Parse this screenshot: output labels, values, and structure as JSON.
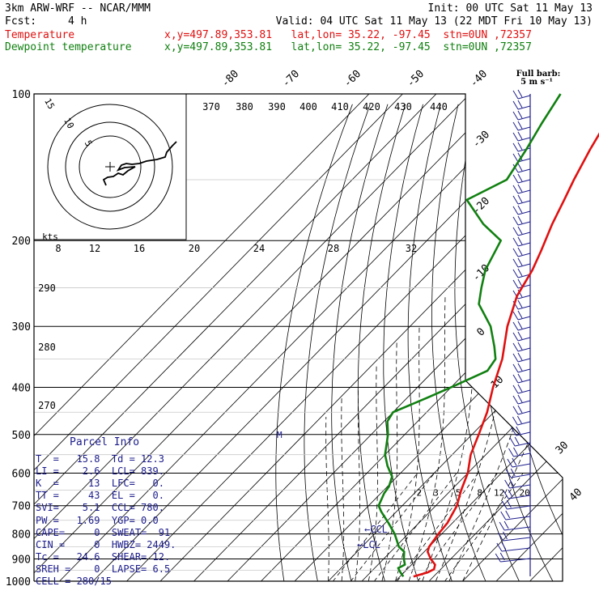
{
  "header": {
    "model": "3km ARW-WRF -- NCAR/MMM",
    "init": "Init: 00 UTC Sat 11 May 13",
    "fcst_label": "Fcst:",
    "fcst_value": "4 h",
    "valid": "Valid: 04 UTC Sat 11 May 13 (22 MDT Fri 10 May 13)",
    "temp_label": "Temperature",
    "dew_label": "Dewpoint temperature",
    "temp_info": "x,y=497.89,353.81   lat,lon= 35.22, -97.45  stn=0UN ,72357",
    "dew_info": "x,y=497.89,353.81   lat,lon= 35.22, -97.45  stn=0UN ,72357"
  },
  "colors": {
    "temperature": "#e01010",
    "dewpoint": "#108010",
    "wind": "#1c1c8c",
    "grid": "#000000"
  },
  "parcel_info": {
    "title": "Parcel Info",
    "rows": [
      "T  =   15.8  Td = 12.3",
      "LI =    2.6  LCL= 839.",
      "K  =     13  LFC=   0.",
      "TT =     43  EL =   0.",
      "SVI=    5.1  CCL= 780.",
      "PW =   1.69  YGP= 0.0",
      "CAPE=     0  SWEAT=  91",
      "CIN =     0  HWBZ= 2449.",
      "Tc =   24.6  SHEAR= 12.",
      "SREH =    0  LAPSE= 6.5",
      "CELL = 280/15"
    ]
  },
  "wind_legend": {
    "line1": "Full barb:",
    "line2": "5 m s⁻¹"
  },
  "level_labels": {
    "ccl": "←CCL",
    "lcl": "←LCL",
    "m": "M"
  },
  "chart_data": {
    "type": "line",
    "title": "",
    "xlabel": "",
    "ylabel": "",
    "y_scale": "log-pressure",
    "ylim": [
      1000,
      100
    ],
    "pressure_levels": [
      100,
      200,
      300,
      400,
      500,
      600,
      700,
      800,
      900,
      1000
    ],
    "temperature_ticks": [
      -80,
      -70,
      -60,
      -50,
      -40,
      -30,
      -20,
      -10,
      0,
      10,
      30,
      40
    ],
    "potential_temp_ticks": [
      370,
      380,
      390,
      400,
      410,
      420,
      430,
      440,
      290,
      280,
      270
    ],
    "mixing_ratio_ticks": [
      "2",
      "3",
      "5",
      "8",
      "12",
      "20"
    ],
    "hodograph": {
      "rings": [
        "5",
        "10",
        "15"
      ],
      "speed_units": "kts",
      "speed_ticks": [
        "8",
        "12",
        "16",
        "20",
        "24",
        "28",
        "32"
      ]
    },
    "series": [
      {
        "name": "Temperature",
        "pressure": [
          978,
          960,
          945,
          925,
          900,
          870,
          850,
          800,
          760,
          700,
          650,
          600,
          550,
          500,
          450,
          400,
          350,
          300,
          260,
          230,
          210,
          185,
          165,
          150,
          130,
          115,
          100
        ],
        "values": [
          14,
          17,
          18,
          17,
          14,
          11,
          10,
          9,
          8.5,
          6.3,
          3,
          0,
          -4.5,
          -8,
          -12,
          -17.5,
          -23,
          -31,
          -37,
          -40,
          -43,
          -47.5,
          -51,
          -54,
          -58,
          -61,
          -64
        ]
      },
      {
        "name": "Dewpoint temperature",
        "pressure": [
          978,
          960,
          940,
          925,
          900,
          870,
          850,
          800,
          760,
          720,
          700,
          660,
          640,
          610,
          580,
          550,
          500,
          470,
          450,
          420,
          400,
          370,
          350,
          330,
          300,
          270,
          250,
          230,
          200,
          185,
          165,
          150,
          130,
          115,
          100
        ],
        "values": [
          11,
          9,
          7,
          8,
          6,
          4,
          1,
          -4,
          -9,
          -14.5,
          -17,
          -19,
          -19.5,
          -21.5,
          -26,
          -30,
          -35,
          -39,
          -40,
          -34,
          -30,
          -24,
          -25,
          -29,
          -36,
          -46,
          -50,
          -54,
          -58,
          -68,
          -80,
          -74,
          -77,
          -80,
          -83
        ]
      }
    ]
  }
}
